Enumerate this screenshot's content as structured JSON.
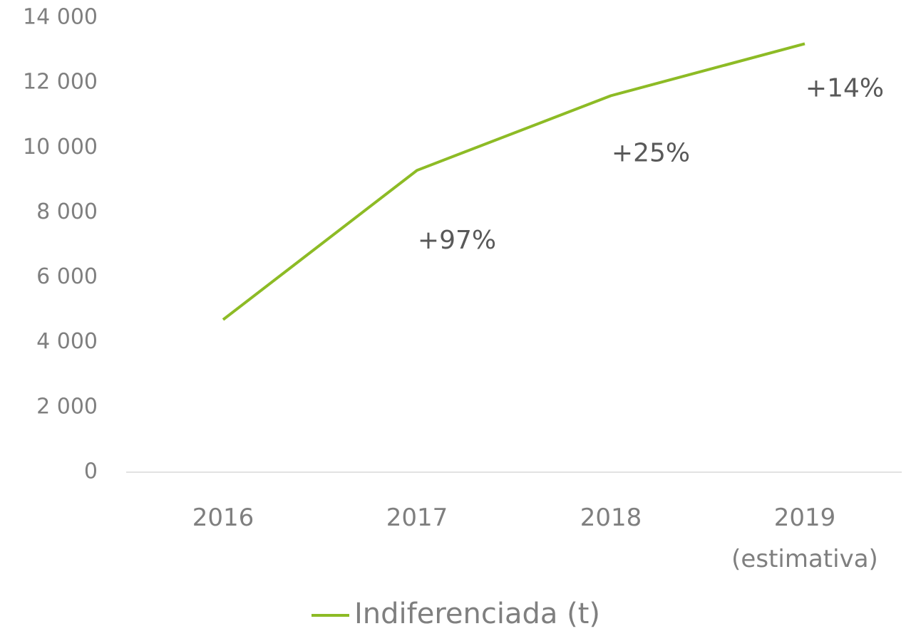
{
  "chart_data": {
    "type": "line",
    "categories": [
      "2016",
      "2017",
      "2018",
      "2019 (estimativa)"
    ],
    "series": [
      {
        "name": "Indiferenciada (t)",
        "color": "#8dbb25",
        "values": [
          4700,
          9300,
          11600,
          13200
        ]
      }
    ],
    "annotations": [
      null,
      "+97%",
      "+25%",
      "+14%"
    ],
    "ylim": [
      0,
      14000
    ],
    "yticks": [
      0,
      {
        "value": 2000,
        "label": "2 000"
      },
      {
        "value": 4000,
        "label": "4 000"
      },
      {
        "value": 6000,
        "label": "6 000"
      },
      {
        "value": 8000,
        "label": "8 000"
      },
      {
        "value": 10000,
        "label": "10 000"
      },
      {
        "value": 12000,
        "label": "12 000"
      },
      {
        "value": 14000,
        "label": "14 000"
      }
    ],
    "legend": "bottom"
  }
}
